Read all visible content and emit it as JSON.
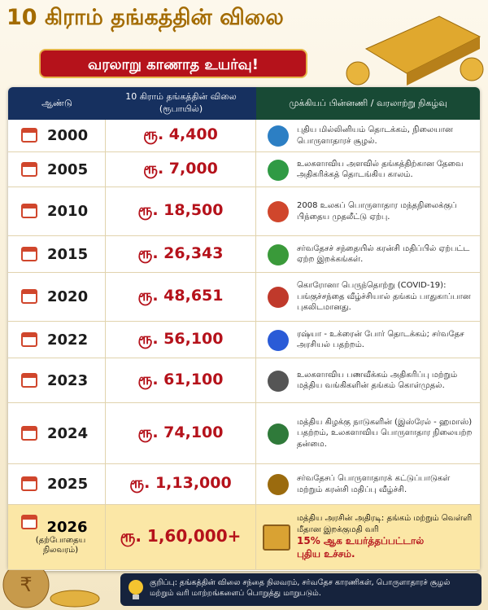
{
  "header": {
    "title": "10 கிராம் தங்கத்தின் விலை",
    "subtitle": "வரலாறு காணாத உயர்வு!"
  },
  "table": {
    "columns": [
      "ஆண்டு",
      "10 கிராம் தங்கத்தின் விலை (ரூபாயில்)",
      "முக்கியப் பின்னணி / வரலாற்று நிகழ்வு"
    ],
    "rows": [
      {
        "year": "2000",
        "price": "ரூ. 4,400",
        "note": "புதிய மில்லினியம் தொடக்கம், நிலையான பொருளாதாரச் சூழல்."
      },
      {
        "year": "2005",
        "price": "ரூ. 7,000",
        "note": "உலகளாவிய அளவில் தங்கத்திற்கான தேவை அதிகரிக்கத் தொடங்கிய காலம்."
      },
      {
        "year": "2010",
        "price": "ரூ. 18,500",
        "note": "2008 உலகப் பொருளாதார மந்தநிலைக்குப் பிந்தைய முதலீட்டு ஏற்பு."
      },
      {
        "year": "2015",
        "price": "ரூ. 26,343",
        "note": "சர்வதேசச் சந்தையில் கரன்சி மதிப்பில் ஏற்பட்ட ஏற்ற இறக்கங்கள்."
      },
      {
        "year": "2020",
        "price": "ரூ. 48,651",
        "note": "கொரோனா பெருந்தொற்று (COVID-19): பங்குச்சந்தை வீழ்ச்சியால் தங்கம் பாதுகாப்பான புகலிடமானது."
      },
      {
        "year": "2022",
        "price": "ரூ. 56,100",
        "note": "ரஷ்யா - உக்ரைன் போர் தொடக்கம்; சர்வதேச அரசியல் பதற்றம்."
      },
      {
        "year": "2023",
        "price": "ரூ. 61,100",
        "note": "உலகளாவிய பணவீக்கம் அதிகரிப்பு மற்றும் மத்திய வங்கிகளின் தங்கம் கொள்முதல்."
      },
      {
        "year": "2024",
        "price": "ரூ. 74,100",
        "note": "மத்திய கிழக்கு நாடுகளின் (இஸ்ரேல் - ஹமாஸ்) பதற்றம், உலகளாவிய பொருளாதார நிலையற்ற தன்மை."
      },
      {
        "year": "2025",
        "price": "ரூ. 1,13,000",
        "note": "சர்வதேசப் பொருளாதாரக் கட்டுப்பாடுகள் மற்றும் கரன்சி மதிப்பு வீழ்ச்சி."
      }
    ],
    "current": {
      "year": "2026",
      "year_note": "(தற்போதைய நிலவரம்)",
      "price": "ரூ. 1,60,000+",
      "note": "மத்திய அரசின் அதிரடி: தங்கம் மற்றும் வெள்ளி மீதான இறக்குமதி வரி",
      "highlight": "15% ஆக உயர்த்தப்பட்டால்",
      "highlight_end": "புதிய உச்சம்."
    }
  },
  "footer": {
    "note": "குறிப்பு: தங்கத்தின் விலை சந்தை நிலவரம், சர்வதேச காரணிகள், பொருளாதாரச் சூழல் மற்றும் வரி மாற்றங்களைப் பொறுத்து மாறுபடும்."
  }
}
